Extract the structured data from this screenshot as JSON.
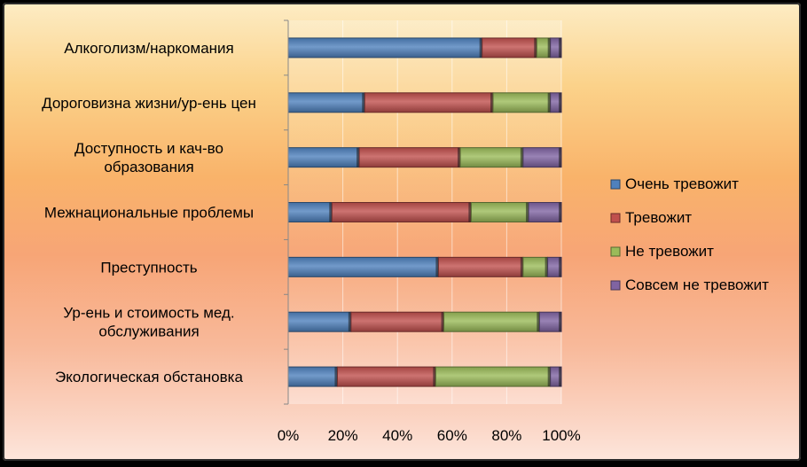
{
  "chart_data": {
    "type": "bar",
    "orientation": "horizontal",
    "stacked": "percent",
    "categories": [
      [
        "Алкоголизм/наркомания"
      ],
      [
        "Дороговизна жизни/ур-ень цен"
      ],
      [
        "Доступность и кач-во",
        "образования"
      ],
      [
        "Межнациональные проблемы"
      ],
      [
        "Преступность"
      ],
      [
        "Ур-ень и стоимость мед.",
        "обслуживания"
      ],
      [
        "Экологическая обстановка"
      ]
    ],
    "series": [
      {
        "name": "Очень тревожит",
        "color": "#4f81bd",
        "values": [
          71,
          28,
          26,
          16,
          55,
          23,
          18
        ]
      },
      {
        "name": "Тревожит",
        "color": "#c0504d",
        "values": [
          20,
          47,
          37,
          51,
          31,
          34,
          36
        ]
      },
      {
        "name": "Не тревожит",
        "color": "#9bbb59",
        "values": [
          5,
          21,
          23,
          21,
          9,
          35,
          42
        ]
      },
      {
        "name": "Совсем не тревожит",
        "color": "#8064a2",
        "values": [
          4,
          4,
          14,
          12,
          5,
          8,
          4
        ]
      }
    ],
    "xlim": [
      0,
      100
    ],
    "xticks": [
      "0%",
      "20%",
      "40%",
      "60%",
      "80%",
      "100%"
    ],
    "grid": "vertical",
    "legend": "right"
  }
}
